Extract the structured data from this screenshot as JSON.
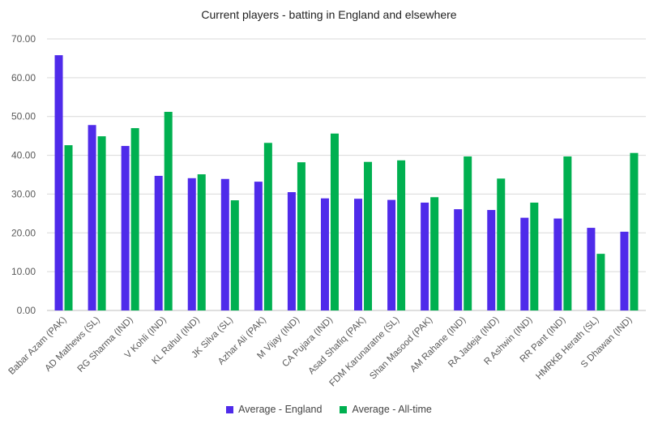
{
  "chart_data": {
    "type": "bar",
    "title": "Current players - batting in England and elsewhere",
    "categories": [
      "Babar Azam (PAK)",
      "AD Mathews (SL)",
      "RG Sharma (IND)",
      "V Kohli (IND)",
      "KL Rahul (IND)",
      "JK Silva (SL)",
      "Azhar Ali (PAK)",
      "M Vijay (IND)",
      "CA Pujara (IND)",
      "Asad Shafiq (PAK)",
      "FDM Karunaratne (SL)",
      "Shan Masood (PAK)",
      "AM Rahane (IND)",
      "RA Jadeja (IND)",
      "R Ashwin (IND)",
      "RR Pant (IND)",
      "HMRKB Herath (SL)",
      "S Dhawan (IND)"
    ],
    "series": [
      {
        "name": "Average - England",
        "color": "#4F2BEA",
        "values": [
          65.8,
          47.8,
          42.4,
          34.7,
          34.1,
          33.9,
          33.2,
          30.5,
          28.9,
          28.8,
          28.5,
          27.8,
          26.1,
          25.9,
          23.9,
          23.7,
          21.3,
          20.3
        ]
      },
      {
        "name": "Average - All-time",
        "color": "#00B050",
        "values": [
          42.6,
          44.9,
          47.0,
          51.2,
          35.1,
          28.4,
          43.2,
          38.2,
          45.6,
          38.3,
          38.7,
          29.2,
          39.7,
          34.0,
          27.8,
          39.7,
          14.6,
          40.6
        ]
      }
    ],
    "yticks": [
      "0.00",
      "10.00",
      "20.00",
      "30.00",
      "40.00",
      "50.00",
      "60.00",
      "70.00"
    ],
    "ylim": [
      0,
      70
    ],
    "grid": true,
    "legend_position": "bottom"
  }
}
